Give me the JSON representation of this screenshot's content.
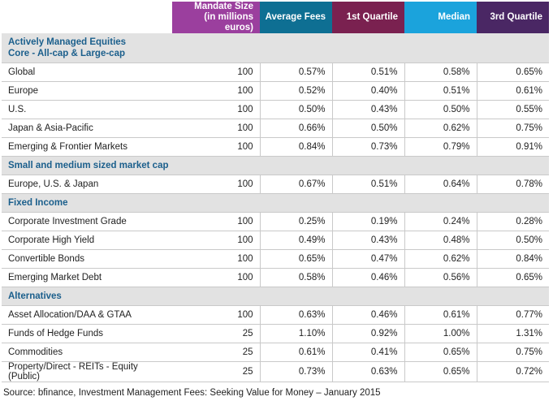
{
  "header": {
    "mandate_size": "Mandate Size",
    "mandate_size_sub": "(in millions euros)",
    "average_fees": "Average Fees",
    "q1": "1st Quartile",
    "median": "Median",
    "q3": "3rd Quartile"
  },
  "sections": [
    {
      "title": "Actively Managed Equities",
      "subtitle": "Core - All-cap & Large-cap",
      "rows": [
        {
          "name": "Global",
          "size": "100",
          "avg": "0.57%",
          "q1": "0.51%",
          "median": "0.58%",
          "q3": "0.65%"
        },
        {
          "name": "Europe",
          "size": "100",
          "avg": "0.52%",
          "q1": "0.40%",
          "median": "0.51%",
          "q3": "0.61%"
        },
        {
          "name": "U.S.",
          "size": "100",
          "avg": "0.50%",
          "q1": "0.43%",
          "median": "0.50%",
          "q3": "0.55%"
        },
        {
          "name": "Japan & Asia-Pacific",
          "size": "100",
          "avg": "0.66%",
          "q1": "0.50%",
          "median": "0.62%",
          "q3": "0.75%"
        },
        {
          "name": "Emerging & Frontier Markets",
          "size": "100",
          "avg": "0.84%",
          "q1": "0.73%",
          "median": "0.79%",
          "q3": "0.91%"
        }
      ]
    },
    {
      "title": "Small and medium sized market cap",
      "subtitle": "",
      "rows": [
        {
          "name": "Europe, U.S. & Japan",
          "size": "100",
          "avg": "0.67%",
          "q1": "0.51%",
          "median": "0.64%",
          "q3": "0.78%"
        }
      ]
    },
    {
      "title": "Fixed Income",
      "subtitle": "",
      "rows": [
        {
          "name": "Corporate Investment Grade",
          "size": "100",
          "avg": "0.25%",
          "q1": "0.19%",
          "median": "0.24%",
          "q3": "0.28%"
        },
        {
          "name": "Corporate High Yield",
          "size": "100",
          "avg": "0.49%",
          "q1": "0.43%",
          "median": "0.48%",
          "q3": "0.50%"
        },
        {
          "name": "Convertible Bonds",
          "size": "100",
          "avg": "0.65%",
          "q1": "0.47%",
          "median": "0.62%",
          "q3": "0.84%"
        },
        {
          "name": "Emerging Market Debt",
          "size": "100",
          "avg": "0.58%",
          "q1": "0.46%",
          "median": "0.56%",
          "q3": "0.65%"
        }
      ]
    },
    {
      "title": "Alternatives",
      "subtitle": "",
      "rows": [
        {
          "name": "Asset Allocation/DAA & GTAA",
          "size": "100",
          "avg": "0.63%",
          "q1": "0.46%",
          "median": "0.61%",
          "q3": "0.77%"
        },
        {
          "name": "Funds of Hedge Funds",
          "size": "25",
          "avg": "1.10%",
          "q1": "0.92%",
          "median": "1.00%",
          "q3": "1.31%"
        },
        {
          "name": "Commodities",
          "size": "25",
          "avg": "0.61%",
          "q1": "0.41%",
          "median": "0.65%",
          "q3": "0.75%"
        },
        {
          "name": "Property/Direct - REITs - Equity (Public)",
          "size": "25",
          "avg": "0.73%",
          "q1": "0.63%",
          "median": "0.65%",
          "q3": "0.72%"
        }
      ]
    }
  ],
  "source": "Source: bfinance, Investment Management Fees: Seeking Value for Money – January 2015",
  "colors": {
    "mandate_header": "#9b3f9e",
    "avg_header": "#0e6f93",
    "q1_header": "#7a2150",
    "median_header": "#1ba3dc",
    "q3_header": "#4a2764",
    "section_text": "#1b5f8c",
    "section_bg": "#e2e2e2"
  }
}
